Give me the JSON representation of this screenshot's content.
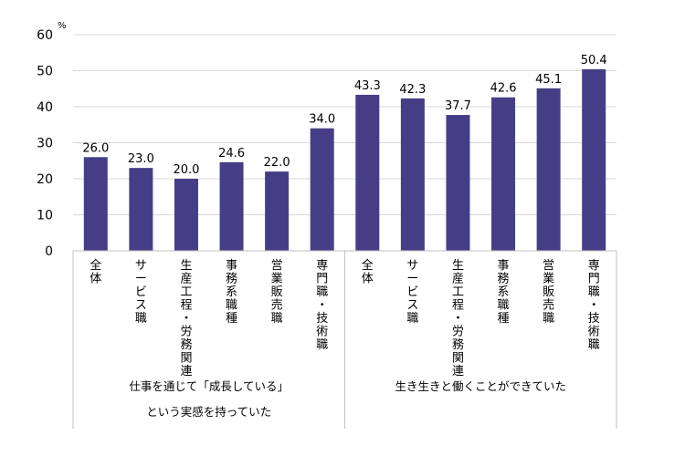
{
  "chart_data": {
    "type": "bar",
    "y_unit": "%",
    "ylim": [
      0,
      60
    ],
    "y_ticks": [
      0,
      10,
      20,
      30,
      40,
      50,
      60
    ],
    "grid": true,
    "legend": "none",
    "bar_color": "#453E86",
    "grid_color": "#D9D9D9",
    "axis_color": "#BFBFBF",
    "groups": [
      {
        "label_lines": [
          "仕事を通じて「成長している」",
          "という実感を持っていた"
        ],
        "categories": [
          "全体",
          "サービス職",
          "生産工程・労務関連",
          "事務系職種",
          "営業販売職",
          "専門職・技術職"
        ],
        "values": [
          26.0,
          23.0,
          20.0,
          24.6,
          22.0,
          34.0
        ],
        "value_labels": [
          "26.0",
          "23.0",
          "20.0",
          "24.6",
          "22.0",
          "34.0"
        ]
      },
      {
        "label_lines": [
          "生き生きと働くことができていた"
        ],
        "categories": [
          "全体",
          "サービス職",
          "生産工程・労務関連",
          "事務系職種",
          "営業販売職",
          "専門職・技術職"
        ],
        "values": [
          43.3,
          42.3,
          37.7,
          42.6,
          45.1,
          50.4
        ],
        "value_labels": [
          "43.3",
          "42.3",
          "37.7",
          "42.6",
          "45.1",
          "50.4"
        ]
      }
    ]
  }
}
